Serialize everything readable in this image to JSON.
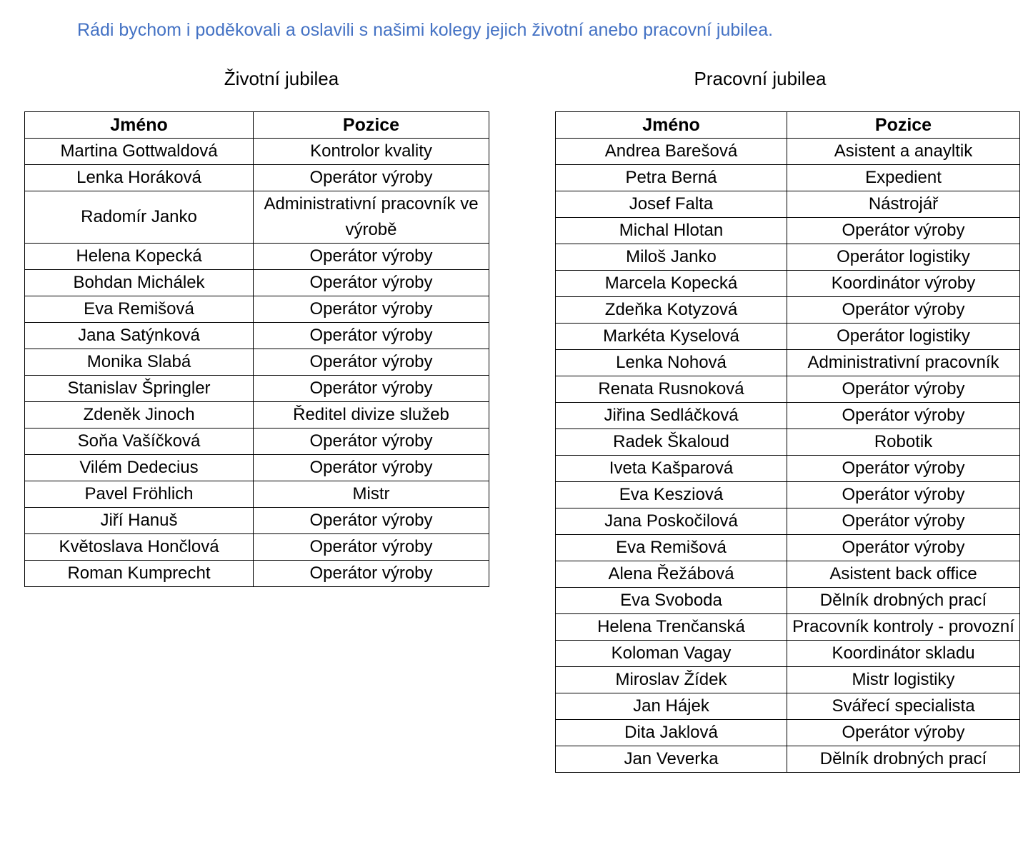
{
  "intro": "Rádi bychom i poděkovali a oslavili s našimi kolegy jejich životní anebo pracovní jubilea.",
  "life": {
    "title": "Životní jubilea",
    "headers": [
      "Jméno",
      "Pozice"
    ],
    "rows": [
      [
        "Martina Gottwaldová",
        "Kontrolor kvality"
      ],
      [
        "Lenka Horáková",
        "Operátor výroby"
      ],
      [
        "Radomír Janko",
        "Administrativní pracovník ve výrobě"
      ],
      [
        "Helena Kopecká",
        "Operátor výroby"
      ],
      [
        "Bohdan Michálek",
        "Operátor výroby"
      ],
      [
        "Eva Remišová",
        "Operátor výroby"
      ],
      [
        "Jana Satýnková",
        "Operátor výroby"
      ],
      [
        "Monika Slabá",
        "Operátor výroby"
      ],
      [
        "Stanislav Špringler",
        "Operátor výroby"
      ],
      [
        "Zdeněk Jinoch",
        "Ředitel divize služeb"
      ],
      [
        "Soňa Vašíčková",
        "Operátor výroby"
      ],
      [
        "Vilém Dedecius",
        "Operátor výroby"
      ],
      [
        "Pavel Fröhlich",
        "Mistr"
      ],
      [
        "Jiří Hanuš",
        "Operátor výroby"
      ],
      [
        "Květoslava Hončlová",
        "Operátor výroby"
      ],
      [
        "Roman Kumprecht",
        "Operátor výroby"
      ]
    ]
  },
  "work": {
    "title": "Pracovní jubilea",
    "headers": [
      "Jméno",
      "Pozice"
    ],
    "rows": [
      [
        "Andrea Barešová",
        "Asistent a anayltik"
      ],
      [
        "Petra Berná",
        "Expedient"
      ],
      [
        "Josef Falta",
        "Nástrojář"
      ],
      [
        "Michal Hlotan",
        "Operátor výroby"
      ],
      [
        "Miloš Janko",
        "Operátor logistiky"
      ],
      [
        "Marcela Kopecká",
        "Koordinátor výroby"
      ],
      [
        "Zdeňka Kotyzová",
        "Operátor výroby"
      ],
      [
        "Markéta Kyselová",
        "Operátor logistiky"
      ],
      [
        "Lenka Nohová",
        "Administrativní pracovník"
      ],
      [
        "Renata Rusnoková",
        "Operátor výroby"
      ],
      [
        "Jiřina Sedláčková",
        "Operátor výroby"
      ],
      [
        "Radek Škaloud",
        "Robotik"
      ],
      [
        "Iveta Kašparová",
        "Operátor výroby"
      ],
      [
        "Eva Kesziová",
        "Operátor výroby"
      ],
      [
        "Jana Poskočilová",
        "Operátor výroby"
      ],
      [
        "Eva Remišová",
        "Operátor výroby"
      ],
      [
        "Alena Řežábová",
        "Asistent back office"
      ],
      [
        "Eva Svoboda",
        "Dělník drobných prací"
      ],
      [
        "Helena Trenčanská",
        "Pracovník kontroly - provozní"
      ],
      [
        "Koloman Vagay",
        "Koordinátor skladu"
      ],
      [
        "Miroslav Žídek",
        "Mistr logistiky"
      ],
      [
        "Jan Hájek",
        "Svářecí specialista"
      ],
      [
        "Dita Jaklová",
        "Operátor výroby"
      ],
      [
        "Jan Veverka",
        "Dělník drobných prací"
      ]
    ]
  },
  "colors": {
    "intro": "#4472C4",
    "text": "#000000"
  }
}
